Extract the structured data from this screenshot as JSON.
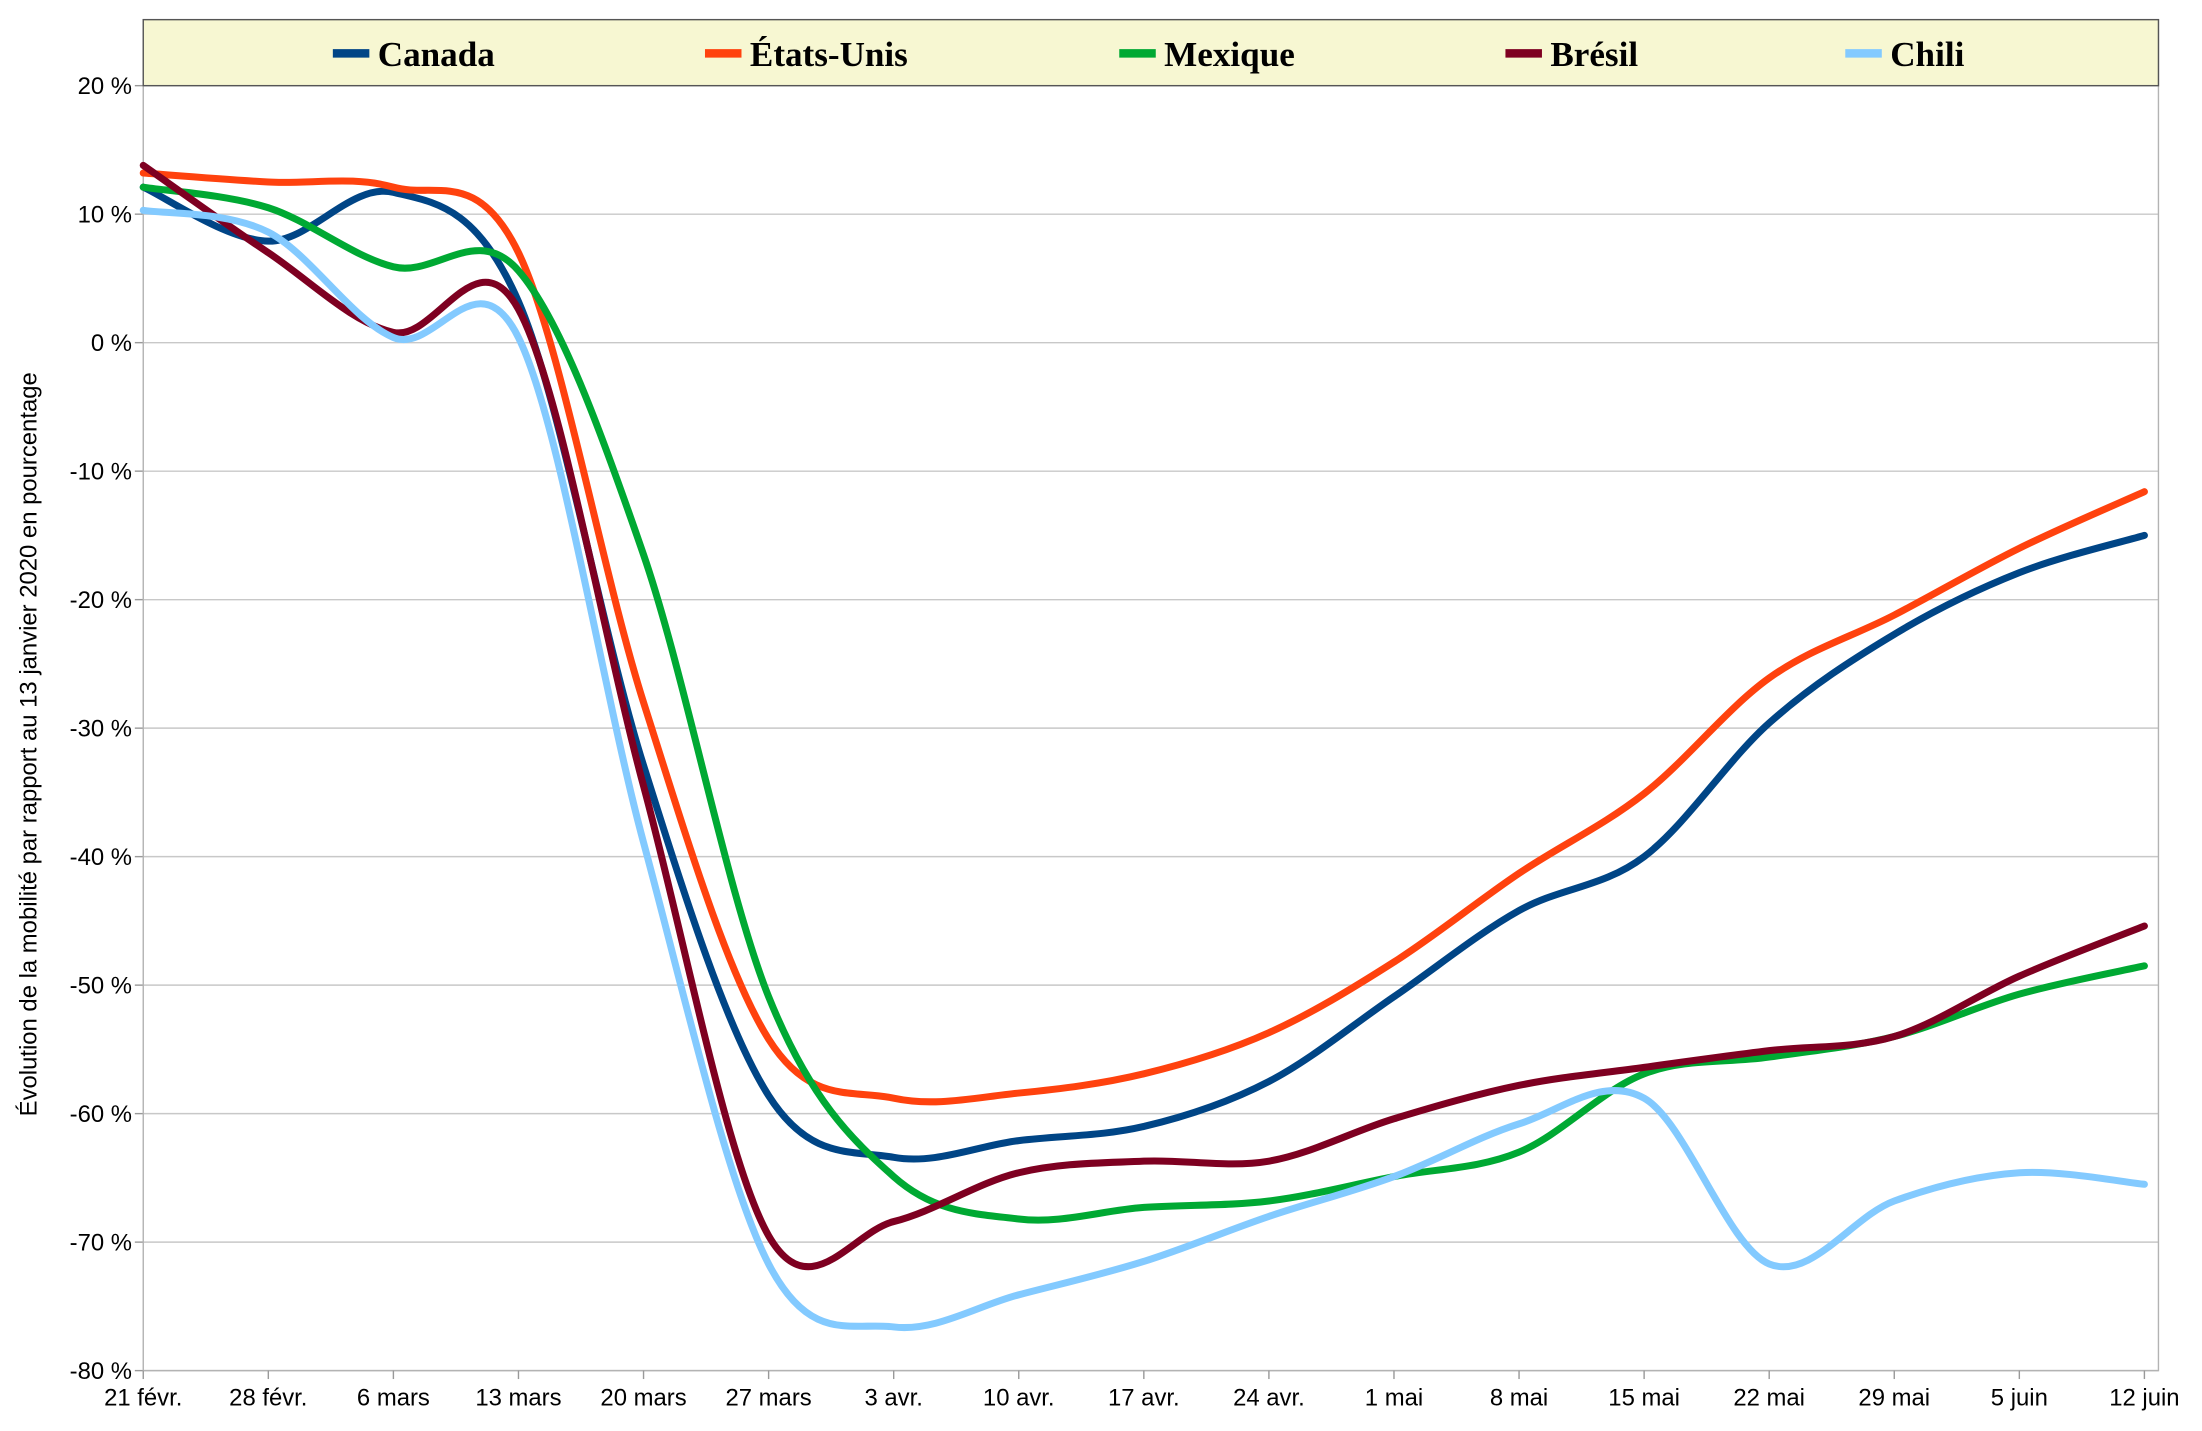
{
  "chart_data": {
    "type": "line",
    "y_label": "Évolution de la mobilité par rapport au 13 janvier 2020 en pourcentage",
    "categories": [
      "21 févr.",
      "28 févr.",
      "6 mars",
      "13 mars",
      "20 mars",
      "27 mars",
      "3 avr.",
      "10 avr.",
      "17 avr.",
      "24 avr.",
      "1 mai",
      "8 mai",
      "15 mai",
      "22 mai",
      "29 mai",
      "5 juin",
      "12 juin"
    ],
    "series": [
      {
        "name": "Canada",
        "color": "#004586",
        "values": [
          12.1,
          7.9,
          11.7,
          3.2,
          -32.9,
          -58.6,
          -63.4,
          -62.1,
          -61,
          -57.5,
          -50.9,
          -44.2,
          -40,
          -29.6,
          -22.7,
          -17.9,
          -15
        ]
      },
      {
        "name": "États-Unis",
        "color": "#ff420e",
        "values": [
          13.2,
          12.5,
          12.1,
          7,
          -28,
          -54.2,
          -58.8,
          -58.4,
          -56.9,
          -53.7,
          -48.2,
          -41.3,
          -35.1,
          -26.1,
          -21.2,
          -16,
          -11.6
        ]
      },
      {
        "name": "Mexique",
        "color": "#00a933",
        "values": [
          12.1,
          10.5,
          5.9,
          5.6,
          -16.5,
          -50.9,
          -64.9,
          -68.2,
          -67.3,
          -66.8,
          -64.9,
          -63,
          -56.9,
          -55.6,
          -54,
          -50.7,
          -48.5
        ]
      },
      {
        "name": "Brésil",
        "color": "#7e0021",
        "values": [
          13.8,
          7,
          0.8,
          2.6,
          -34.5,
          -69.5,
          -68.4,
          -64.6,
          -63.7,
          -63.7,
          -60.4,
          -57.8,
          -56.4,
          -55.1,
          -54,
          -49.3,
          -45.4
        ]
      },
      {
        "name": "Chili",
        "color": "#83caff",
        "values": [
          10.3,
          8.6,
          0.4,
          0.4,
          -38.9,
          -71.7,
          -76.6,
          -74.1,
          -71.5,
          -68,
          -64.9,
          -60.8,
          -58.8,
          -71.7,
          -66.8,
          -64.6,
          -65.5
        ]
      }
    ],
    "ylim": [
      -80,
      20
    ],
    "yticks": [
      {
        "value": -80,
        "label": "-80 %"
      },
      {
        "value": -70,
        "label": "-70 %"
      },
      {
        "value": -60,
        "label": "-60 %"
      },
      {
        "value": -50,
        "label": "-50 %"
      },
      {
        "value": -40,
        "label": "-40 %"
      },
      {
        "value": -30,
        "label": "-30 %"
      },
      {
        "value": -20,
        "label": "-20 %"
      },
      {
        "value": -10,
        "label": "-10 %"
      },
      {
        "value": 0,
        "label": "0 %"
      },
      {
        "value": 10,
        "label": "10 %"
      },
      {
        "value": 20,
        "label": "20 %"
      }
    ],
    "grid": true,
    "legend": "top"
  }
}
